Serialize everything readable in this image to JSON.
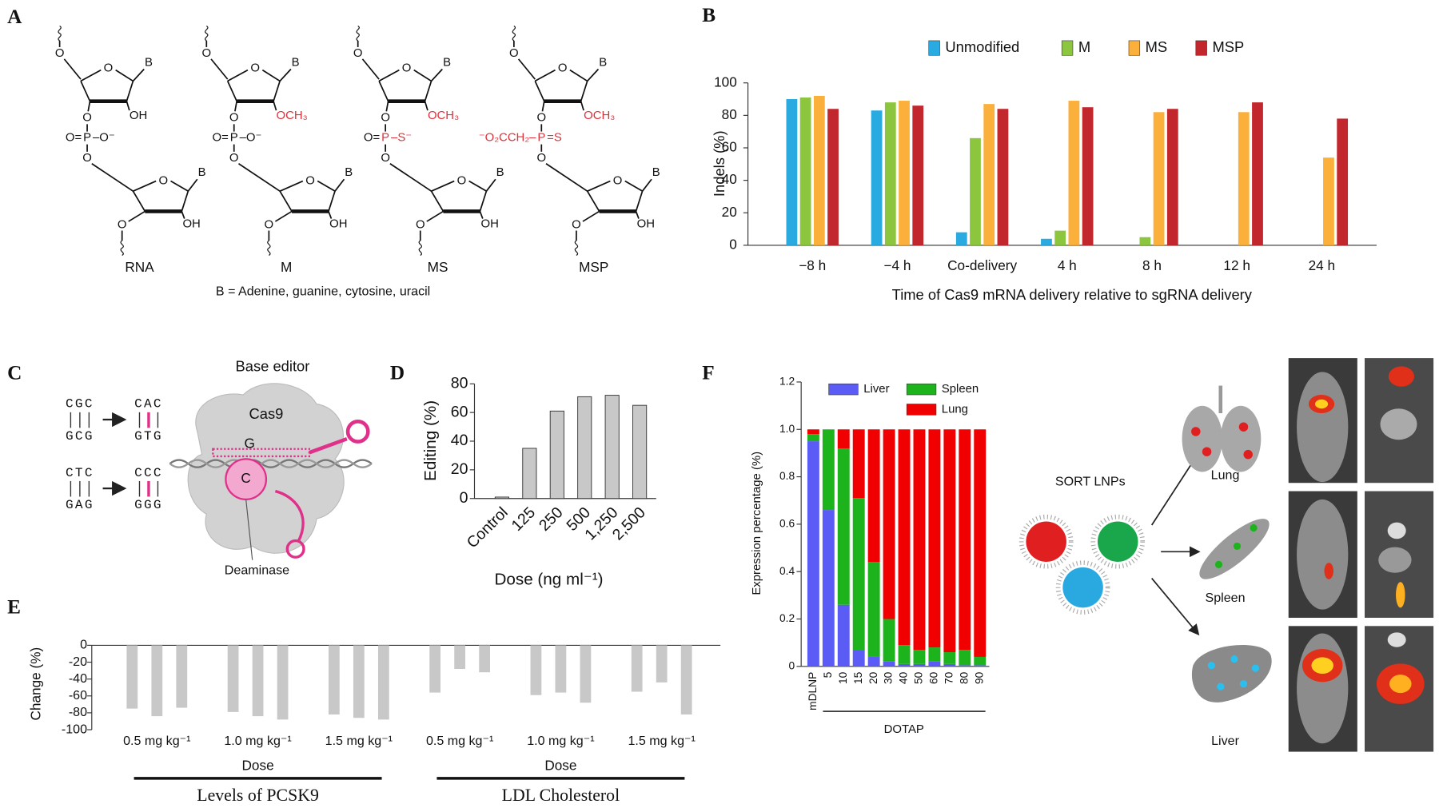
{
  "panel_labels": [
    "A",
    "B",
    "C",
    "D",
    "E",
    "F"
  ],
  "panel_a": {
    "atoms": {
      "o": "O",
      "base": "B",
      "oh": "OH",
      "p": "P"
    },
    "structures": [
      {
        "name": "RNA",
        "sub2": "OH",
        "p_left": "O=",
        "p_right": "–O⁻"
      },
      {
        "name": "M",
        "sub2": "OCH₃",
        "p_left": "O=",
        "p_right": "–O⁻"
      },
      {
        "name": "MS",
        "sub2": "OCH₃",
        "p_left": "O=",
        "p_right": "–S⁻"
      },
      {
        "name": "MSP",
        "sub2": "OCH₃",
        "p_left": "⁻O₂CCH₂–",
        "p_right": "=S"
      }
    ],
    "caption": "B = Adenine, guanine, cytosine, uracil"
  },
  "panel_c": {
    "title": "Base editor",
    "protein": "Cas9",
    "guide_base": "G",
    "target_base": "C",
    "enzyme": "Deaminase",
    "edits": [
      {
        "before": [
          "CGC",
          "GCG"
        ],
        "after": [
          "CAC",
          "GTG"
        ]
      },
      {
        "before": [
          "CTC",
          "GAG"
        ],
        "after": [
          "CCC",
          "GGG"
        ]
      }
    ]
  },
  "panel_f_diagram": {
    "particles": "SORT LNPs",
    "organs": [
      "Lung",
      "Spleen",
      "Liver"
    ]
  },
  "chart_data": [
    {
      "type": "bar",
      "y_label": "Indels (%)",
      "x_label": "Time of Cas9 mRNA delivery relative to sgRNA delivery",
      "categories": [
        "−8 h",
        "−4 h",
        "Co-delivery",
        "4 h",
        "8 h",
        "12 h",
        "24 h"
      ],
      "series": [
        {
          "name": "Unmodified",
          "color": "#29abe2",
          "values": [
            90,
            83,
            8,
            4,
            null,
            null,
            null
          ]
        },
        {
          "name": "M",
          "color": "#8cc63f",
          "values": [
            91,
            88,
            66,
            9,
            5,
            null,
            null
          ]
        },
        {
          "name": "MS",
          "color": "#fbb03b",
          "values": [
            92,
            89,
            87,
            89,
            82,
            82,
            54
          ]
        },
        {
          "name": "MSP",
          "color": "#c1272d",
          "values": [
            84,
            86,
            84,
            85,
            84,
            88,
            78
          ]
        }
      ],
      "ylim": [
        0,
        100
      ],
      "yticks": [
        0,
        20,
        40,
        60,
        80,
        100
      ],
      "legend": "top"
    },
    {
      "type": "bar",
      "y_label": "Editing (%)",
      "x_label": "Dose (ng ml⁻¹)",
      "categories": [
        "Control",
        "125",
        "250",
        "500",
        "1,250",
        "2,500"
      ],
      "values": [
        1,
        35,
        61,
        71,
        72,
        65
      ],
      "color": "#c8c8c8",
      "ylim": [
        0,
        80
      ],
      "yticks": [
        0,
        20,
        40,
        60,
        80
      ]
    },
    {
      "type": "bar",
      "y_label": "Change (%)",
      "categories": [
        "0.5 mg kg⁻¹",
        "1.0 mg kg⁻¹",
        "1.5 mg kg⁻¹",
        "0.5 mg kg⁻¹",
        "1.0 mg kg⁻¹",
        "1.5 mg kg⁻¹"
      ],
      "series": [
        {
          "color": "#c8c8c8",
          "values": [
            -75,
            -79,
            -82,
            -56,
            -59,
            -55
          ]
        },
        {
          "color": "#c8c8c8",
          "values": [
            -84,
            -84,
            -86,
            -28,
            -56,
            -44
          ]
        },
        {
          "color": "#c8c8c8",
          "values": [
            -74,
            -88,
            -88,
            -32,
            -68,
            -82
          ]
        }
      ],
      "groups": [
        {
          "label": "Dose",
          "title": "Levels of PCSK9"
        },
        {
          "label": "Dose",
          "title": "LDL Cholesterol"
        }
      ],
      "ylim": [
        -100,
        0
      ],
      "yticks": [
        0,
        -20,
        -40,
        -60,
        -80,
        -100
      ]
    },
    {
      "type": "stacked_bar",
      "y_label": "Expression percentage (%)",
      "x_label": "DOTAP",
      "categories": [
        "mDLNP",
        "5",
        "10",
        "15",
        "20",
        "30",
        "40",
        "50",
        "60",
        "70",
        "80",
        "90"
      ],
      "series": [
        {
          "name": "Liver",
          "color": "#5b5bf5",
          "values": [
            0.95,
            0.66,
            0.26,
            0.07,
            0.04,
            0.02,
            0.01,
            0.01,
            0.02,
            0.01,
            0.005,
            0.005
          ]
        },
        {
          "name": "Spleen",
          "color": "#1db31d",
          "values": [
            0.03,
            0.34,
            0.66,
            0.64,
            0.4,
            0.18,
            0.08,
            0.06,
            0.06,
            0.05,
            0.065,
            0.035
          ]
        },
        {
          "name": "Lung",
          "color": "#f00000",
          "values": [
            0.02,
            0,
            0.08,
            0.29,
            0.56,
            0.8,
            0.91,
            0.93,
            0.92,
            0.94,
            0.93,
            0.96
          ]
        }
      ],
      "ylim": [
        0,
        1.2
      ],
      "yticks": [
        0,
        0.2,
        0.4,
        0.6,
        0.8,
        {
          "value": 1,
          "label": "1.0"
        },
        1.2
      ],
      "legend": "top"
    }
  ]
}
